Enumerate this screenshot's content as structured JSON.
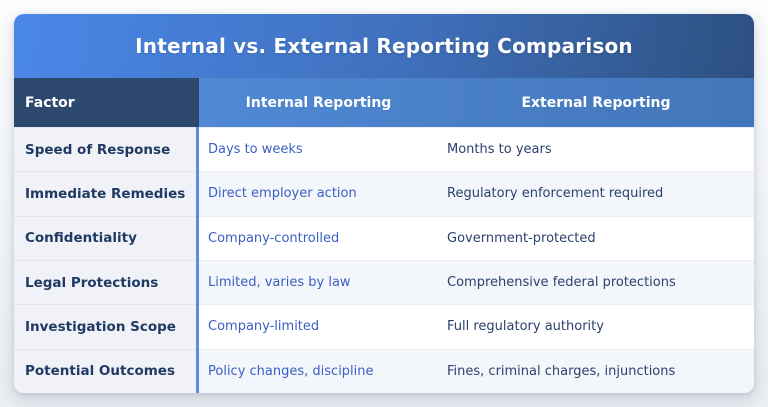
{
  "title": "Internal vs. External Reporting Comparison",
  "table": {
    "columns": [
      {
        "key": "factor",
        "label": "Factor"
      },
      {
        "key": "internal",
        "label": "Internal Reporting"
      },
      {
        "key": "external",
        "label": "External Reporting"
      }
    ],
    "rows": [
      {
        "factor": "Speed of Response",
        "internal": "Days to weeks",
        "external": "Months to years"
      },
      {
        "factor": "Immediate Remedies",
        "internal": "Direct employer action",
        "external": "Regulatory enforcement required"
      },
      {
        "factor": "Confidentiality",
        "internal": "Company-controlled",
        "external": "Government-protected"
      },
      {
        "factor": "Legal Protections",
        "internal": "Limited, varies by law",
        "external": "Comprehensive federal protections"
      },
      {
        "factor": "Investigation Scope",
        "internal": "Company-limited",
        "external": "Full regulatory authority"
      },
      {
        "factor": "Potential Outcomes",
        "internal": "Policy changes, discipline",
        "external": "Fines, criminal charges, injunctions"
      }
    ]
  },
  "colors": {
    "title_gradient_start": "#4a88e8",
    "title_gradient_end": "#2d5080",
    "factor_header_bg": "#2d4a6e",
    "column_header_bg": "#4a80c8",
    "factor_column_bg": "#f1f2f7",
    "alt_row_bg": "#f3f6fb",
    "divider_blue": "#5b8ee2",
    "factor_text": "#1f3a63",
    "internal_text": "#3c5fc3",
    "external_text": "#2c416e"
  },
  "chart_data": {
    "type": "table",
    "title": "Internal vs. External Reporting Comparison",
    "columns": [
      "Factor",
      "Internal Reporting",
      "External Reporting"
    ],
    "rows": [
      [
        "Speed of Response",
        "Days to weeks",
        "Months to years"
      ],
      [
        "Immediate Remedies",
        "Direct employer action",
        "Regulatory enforcement required"
      ],
      [
        "Confidentiality",
        "Company-controlled",
        "Government-protected"
      ],
      [
        "Legal Protections",
        "Limited, varies by law",
        "Comprehensive federal protections"
      ],
      [
        "Investigation Scope",
        "Company-limited",
        "Full regulatory authority"
      ],
      [
        "Potential Outcomes",
        "Policy changes, discipline",
        "Fines, criminal charges, injunctions"
      ]
    ],
    "layout_hints": {
      "header_style": "blue gradient banner title, dark navy factor header cell, medium blue column headers",
      "row_striping": "white / light blue alternating",
      "factor_column": "light gray background, bold navy labels, blue vertical divider to the right"
    }
  }
}
